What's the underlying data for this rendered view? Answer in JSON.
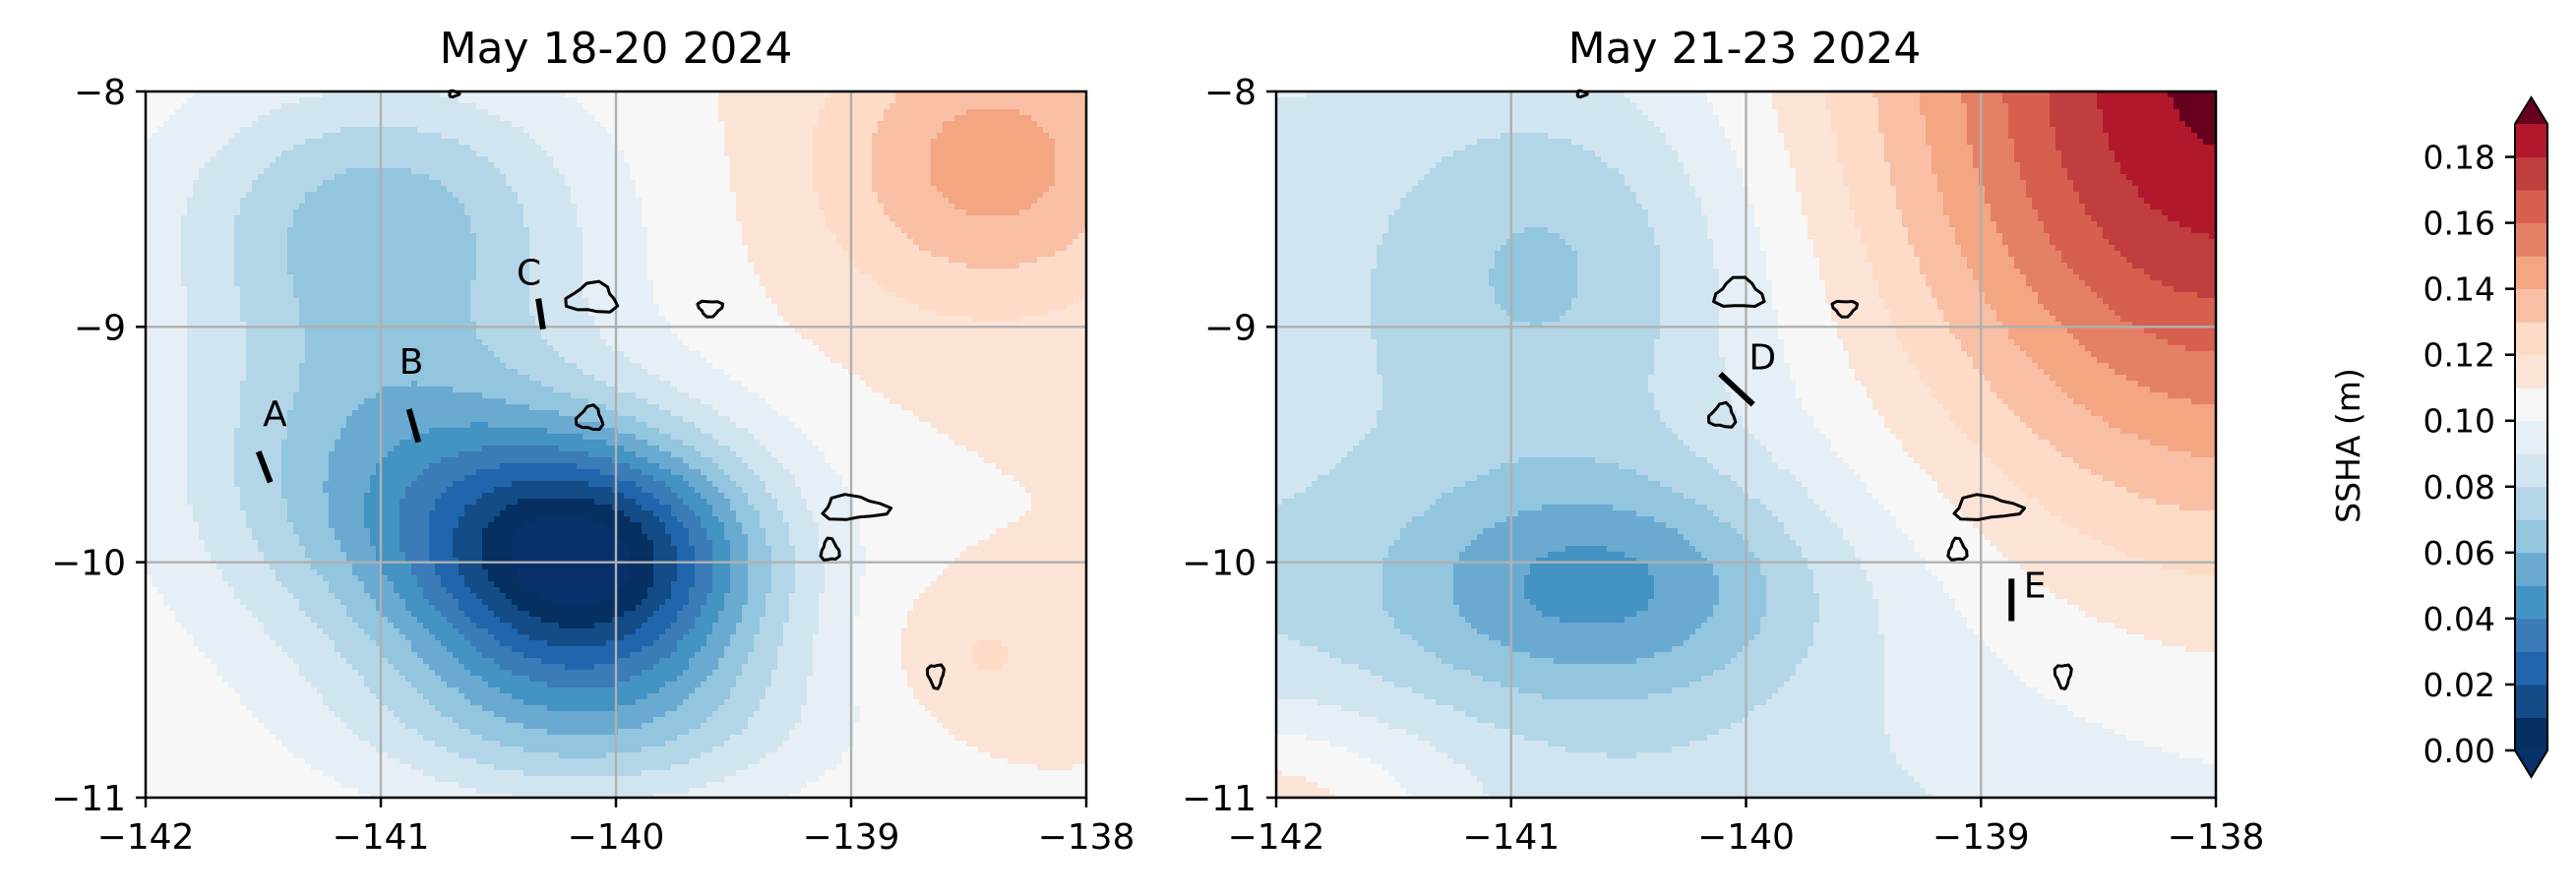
{
  "chart_data": [
    {
      "type": "heatmap",
      "title": "May 18-20 2024",
      "xlim": [
        -142,
        -138
      ],
      "ylim": [
        -11,
        -8
      ],
      "xticks": [
        -142,
        -141,
        -140,
        -139,
        -138
      ],
      "yticks": [
        -11,
        -10,
        -9,
        -8
      ],
      "xtick_labels": [
        "−142",
        "−141",
        "−140",
        "−139",
        "−138"
      ],
      "ytick_labels": [
        "−11",
        "−10",
        "−9",
        "−8"
      ],
      "grid": true,
      "anomaly_field": {
        "background_m": 0.11,
        "features": [
          {
            "kind": "low",
            "center_lon": -140.1,
            "center_lat": -10.0,
            "amplitude_m": -0.105,
            "radius_lon": 0.75,
            "radius_lat": 0.55
          },
          {
            "kind": "low",
            "center_lon": -141.0,
            "center_lat": -9.6,
            "amplitude_m": -0.045,
            "radius_lon": 0.9,
            "radius_lat": 0.8
          },
          {
            "kind": "low",
            "center_lon": -141.0,
            "center_lat": -8.5,
            "amplitude_m": -0.04,
            "radius_lon": 0.9,
            "radius_lat": 0.6
          },
          {
            "kind": "low",
            "center_lon": -140.1,
            "center_lat": -10.7,
            "amplitude_m": -0.03,
            "radius_lon": 1.0,
            "radius_lat": 0.4
          },
          {
            "kind": "high",
            "center_lon": -138.4,
            "center_lat": -8.3,
            "amplitude_m": 0.035,
            "radius_lon": 0.7,
            "radius_lat": 0.6
          },
          {
            "kind": "high",
            "center_lon": -138.45,
            "center_lat": -10.4,
            "amplitude_m": 0.012,
            "radius_lon": 0.4,
            "radius_lat": 0.3
          }
        ]
      },
      "transect_labels": [
        {
          "label": "A",
          "lon": -141.45,
          "lat": -9.42
        },
        {
          "label": "B",
          "lon": -140.87,
          "lat": -9.2
        },
        {
          "label": "C",
          "lon": -140.37,
          "lat": -8.82
        }
      ],
      "transects": [
        {
          "label": "A",
          "lon": [
            -141.52,
            -141.47
          ],
          "lat": [
            -9.53,
            -9.66
          ]
        },
        {
          "label": "B",
          "lon": [
            -140.88,
            -140.84
          ],
          "lat": [
            -9.35,
            -9.49
          ]
        },
        {
          "label": "C",
          "lon": [
            -140.33,
            -140.31
          ],
          "lat": [
            -8.88,
            -9.01
          ]
        }
      ],
      "islands": [
        {
          "lon": -140.1,
          "lat": -8.88,
          "w": 0.25,
          "h": 0.15
        },
        {
          "lon": -139.6,
          "lat": -8.92,
          "w": 0.12,
          "h": 0.08
        },
        {
          "lon": -140.11,
          "lat": -9.39,
          "w": 0.13,
          "h": 0.12
        },
        {
          "lon": -138.99,
          "lat": -9.77,
          "w": 0.33,
          "h": 0.12
        },
        {
          "lon": -139.09,
          "lat": -9.95,
          "w": 0.09,
          "h": 0.11
        },
        {
          "lon": -138.64,
          "lat": -10.48,
          "w": 0.08,
          "h": 0.12
        },
        {
          "lon": -140.69,
          "lat": -8.01,
          "w": 0.05,
          "h": 0.03
        }
      ]
    },
    {
      "type": "heatmap",
      "title": "May 21-23 2024",
      "xlim": [
        -142,
        -138
      ],
      "ylim": [
        -11,
        -8
      ],
      "xticks": [
        -142,
        -141,
        -140,
        -139,
        -138
      ],
      "yticks": [
        -11,
        -10,
        -9,
        -8
      ],
      "xtick_labels": [
        "−142",
        "−141",
        "−140",
        "−139",
        "−138"
      ],
      "ytick_labels": [
        "−11",
        "−10",
        "−9",
        "−8"
      ],
      "grid": true,
      "anomaly_field": {
        "background_m": 0.092,
        "features": [
          {
            "kind": "low",
            "center_lon": -140.6,
            "center_lat": -10.1,
            "amplitude_m": -0.04,
            "radius_lon": 0.9,
            "radius_lat": 0.5
          },
          {
            "kind": "low",
            "center_lon": -140.8,
            "center_lat": -8.7,
            "amplitude_m": -0.025,
            "radius_lon": 0.8,
            "radius_lat": 0.8
          },
          {
            "kind": "high",
            "center_lon": -138.0,
            "center_lat": -8.0,
            "amplitude_m": 0.085,
            "radius_lon": 1.4,
            "radius_lat": 1.8
          },
          {
            "kind": "high",
            "center_lon": -142.1,
            "center_lat": -11.1,
            "amplitude_m": 0.04,
            "radius_lon": 0.9,
            "radius_lat": 0.5
          }
        ],
        "gradient": {
          "per_deg_lon": 0.004,
          "per_deg_lat": 0.005
        }
      },
      "transect_labels": [
        {
          "label": "D",
          "lon": -139.93,
          "lat": -9.18
        },
        {
          "label": "E",
          "lon": -138.77,
          "lat": -10.15
        }
      ],
      "transects": [
        {
          "label": "D",
          "lon": [
            -140.11,
            -139.97
          ],
          "lat": [
            -9.2,
            -9.33
          ]
        },
        {
          "label": "E",
          "lon": [
            -138.87,
            -138.87
          ],
          "lat": [
            -10.07,
            -10.25
          ]
        }
      ],
      "islands": [
        {
          "lon": -140.03,
          "lat": -8.86,
          "w": 0.24,
          "h": 0.15
        },
        {
          "lon": -139.58,
          "lat": -8.92,
          "w": 0.12,
          "h": 0.08
        },
        {
          "lon": -140.1,
          "lat": -9.38,
          "w": 0.13,
          "h": 0.12
        },
        {
          "lon": -138.98,
          "lat": -9.77,
          "w": 0.34,
          "h": 0.12
        },
        {
          "lon": -139.1,
          "lat": -9.95,
          "w": 0.09,
          "h": 0.11
        },
        {
          "lon": -138.65,
          "lat": -10.48,
          "w": 0.08,
          "h": 0.12
        },
        {
          "lon": -140.7,
          "lat": -8.01,
          "w": 0.05,
          "h": 0.03
        }
      ]
    }
  ],
  "colorbar": {
    "label": "SSHA (m)",
    "min": 0.0,
    "max": 0.19,
    "step": 0.01,
    "extend": "both",
    "colormap": "RdBu_r",
    "ticks": [
      0.0,
      0.02,
      0.04,
      0.06,
      0.08,
      0.1,
      0.12,
      0.14,
      0.16,
      0.18
    ],
    "tick_labels": [
      "0.00",
      "0.02",
      "0.04",
      "0.06",
      "0.08",
      "0.10",
      "0.12",
      "0.14",
      "0.16",
      "0.18"
    ],
    "colors": [
      "#08306b",
      "#053061",
      "#134c87",
      "#2166ac",
      "#3a7bb8",
      "#4393c3",
      "#6aaad1",
      "#92c5de",
      "#b2d6e8",
      "#d1e5f0",
      "#e6eff5",
      "#f7f7f7",
      "#fbe3d6",
      "#fddbc7",
      "#f8bfa4",
      "#f4a582",
      "#e48066",
      "#d6604d",
      "#c13e3f",
      "#b2182b",
      "#8e0d25",
      "#67001f"
    ]
  }
}
